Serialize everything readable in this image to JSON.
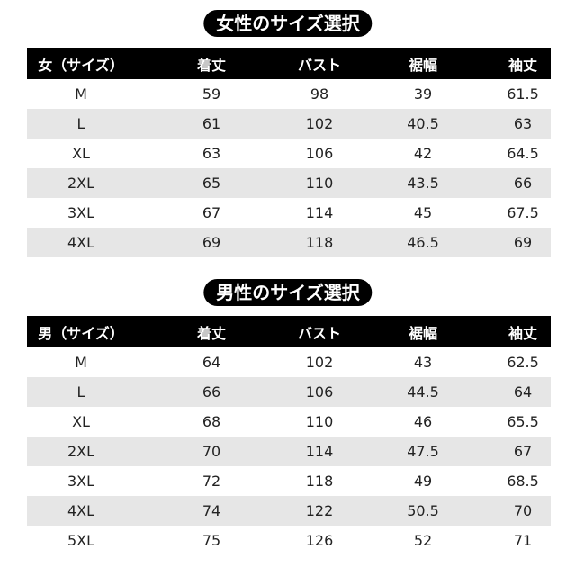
{
  "women": {
    "title": "女性のサイズ選択",
    "headers": [
      "女（サイズ）",
      "着丈",
      "バスト",
      "裾幅",
      "袖丈"
    ],
    "rows": [
      [
        "M",
        "59",
        "98",
        "39",
        "61.5"
      ],
      [
        "L",
        "61",
        "102",
        "40.5",
        "63"
      ],
      [
        "XL",
        "63",
        "106",
        "42",
        "64.5"
      ],
      [
        "2XL",
        "65",
        "110",
        "43.5",
        "66"
      ],
      [
        "3XL",
        "67",
        "114",
        "45",
        "67.5"
      ],
      [
        "4XL",
        "69",
        "118",
        "46.5",
        "69"
      ]
    ]
  },
  "men": {
    "title": "男性のサイズ選択",
    "headers": [
      "男（サイズ）",
      "着丈",
      "バスト",
      "裾幅",
      "袖丈"
    ],
    "rows": [
      [
        "M",
        "64",
        "102",
        "43",
        "62.5"
      ],
      [
        "L",
        "66",
        "106",
        "44.5",
        "64"
      ],
      [
        "XL",
        "68",
        "110",
        "46",
        "65.5"
      ],
      [
        "2XL",
        "70",
        "114",
        "47.5",
        "67"
      ],
      [
        "3XL",
        "72",
        "118",
        "49",
        "68.5"
      ],
      [
        "4XL",
        "74",
        "122",
        "50.5",
        "70"
      ],
      [
        "5XL",
        "75",
        "126",
        "52",
        "71"
      ]
    ]
  },
  "colors": {
    "header_bg": "#000000",
    "alt_row_bg": "#e6e6e6"
  }
}
